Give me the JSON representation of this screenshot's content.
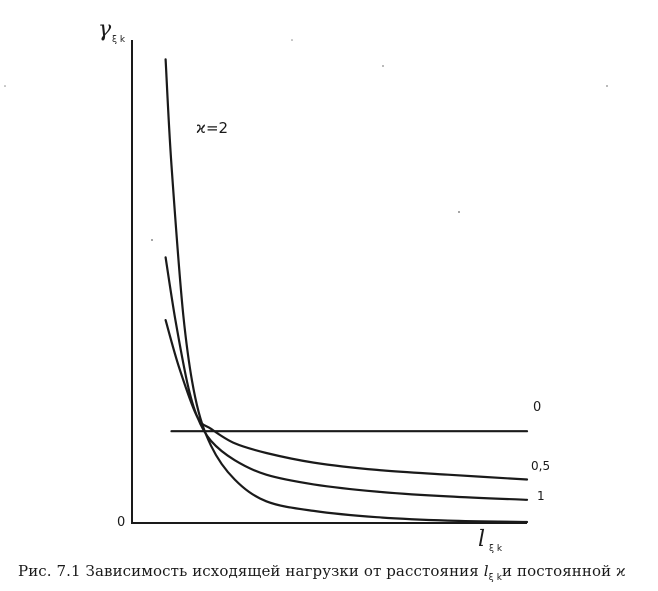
{
  "caption": {
    "prefix": "Рис. 7.1 Зависимость исходящей нагрузки от расстояния ",
    "symbol": "l",
    "symbol_sub": "ξ k",
    "suffix": "и постоянной ϰ"
  },
  "chart_data": {
    "type": "line",
    "title": "",
    "ylabel": "γ",
    "ylabel_sub": "ξ k",
    "xlabel": "l",
    "xlabel_sub": "ξ k",
    "origin_label": "0",
    "xlim": [
      0,
      1
    ],
    "ylim": [
      0,
      1
    ],
    "grid": false,
    "series": [
      {
        "name": "ϰ=2",
        "x": [
          0.085,
          0.1,
          0.13,
          0.16,
          0.2,
          0.26,
          0.34,
          0.46,
          0.62,
          0.8,
          1.0
        ],
        "y": [
          0.96,
          0.74,
          0.43,
          0.26,
          0.16,
          0.09,
          0.045,
          0.025,
          0.012,
          0.005,
          0.002
        ]
      },
      {
        "name": "1",
        "x": [
          0.085,
          0.11,
          0.14,
          0.165,
          0.2,
          0.26,
          0.34,
          0.46,
          0.62,
          0.8,
          1.0
        ],
        "y": [
          0.55,
          0.42,
          0.29,
          0.22,
          0.17,
          0.13,
          0.1,
          0.08,
          0.065,
          0.055,
          0.048
        ]
      },
      {
        "name": "0,5",
        "x": [
          0.085,
          0.12,
          0.165,
          0.2,
          0.26,
          0.34,
          0.46,
          0.62,
          0.8,
          1.0
        ],
        "y": [
          0.42,
          0.32,
          0.22,
          0.195,
          0.165,
          0.145,
          0.125,
          0.11,
          0.1,
          0.09
        ]
      },
      {
        "name": "0",
        "x": [
          0.1,
          1.0
        ],
        "y": [
          0.19,
          0.19
        ]
      }
    ]
  }
}
